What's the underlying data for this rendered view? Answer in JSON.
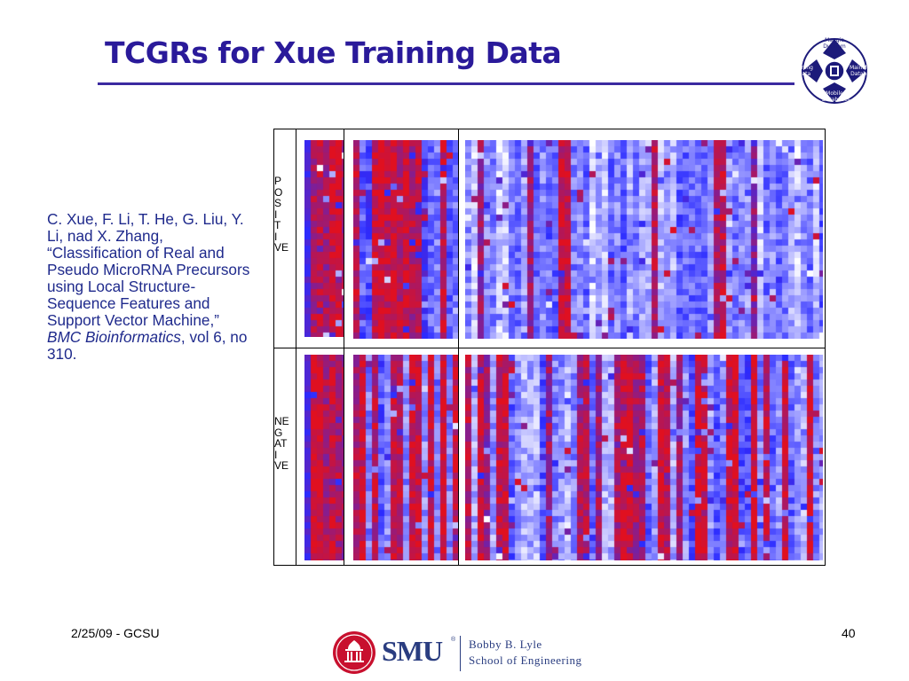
{
  "slide": {
    "title": "TCGRs for Xue Training Data"
  },
  "logo": {
    "top": "Maggie Dunham",
    "left": "Mining Data",
    "right": "MainMemory Databases",
    "bottom": "Mobile Databases"
  },
  "citation": {
    "text_before": "C. Xue, F. Li, T. He, G. Liu, Y. Li, nad X. Zhang, “Classification of Real and Pseudo MicroRNA Precursors using Local Structure-Sequence Features and Support Vector Machine,” ",
    "journal": "BMC Bioinformatics",
    "text_after": ", vol 6, no 310."
  },
  "figure": {
    "positive_label": [
      "P",
      "O",
      "S",
      "I",
      "T",
      "I",
      "VE"
    ],
    "negative_label": [
      "NE",
      "G",
      "AT",
      "I",
      "VE"
    ],
    "colors": {
      "low": "#ffffff",
      "mid": "#2b2bff",
      "high": "#e01020",
      "frame": "#000000"
    }
  },
  "footer": {
    "date": "2/25/09 - GCSU",
    "page_number": "40",
    "institution_logo": "SMU",
    "school_line1": "Bobby B. Lyle",
    "school_line2": "School of Engineering"
  }
}
